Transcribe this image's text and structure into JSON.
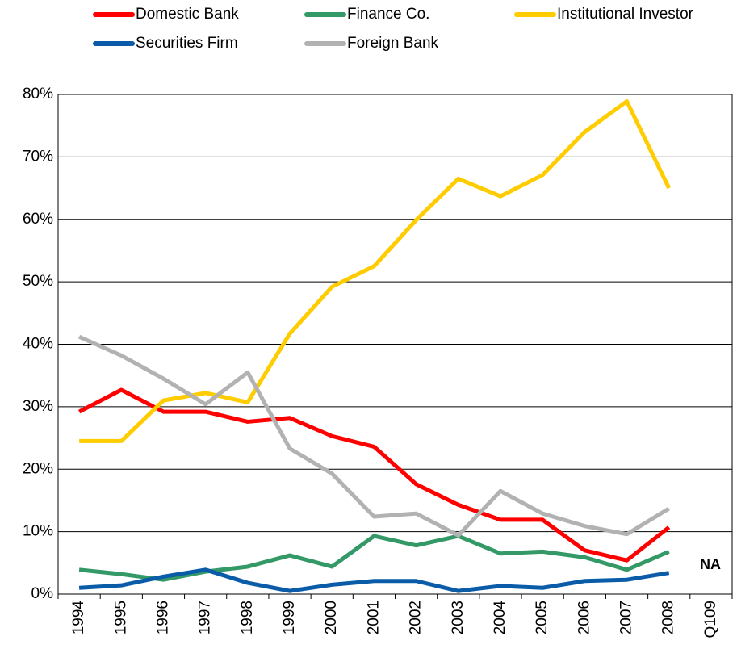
{
  "chart_data": {
    "type": "line",
    "categories": [
      "1994",
      "1995",
      "1996",
      "1997",
      "1998",
      "1999",
      "2000",
      "2001",
      "2002",
      "2003",
      "2004",
      "2005",
      "2006",
      "2007",
      "2008",
      "Q109"
    ],
    "series": [
      {
        "name": "Domestic Bank",
        "color": "#ff0000",
        "values": [
          29.2,
          32.7,
          29.2,
          29.2,
          27.6,
          28.2,
          25.3,
          23.6,
          17.6,
          14.3,
          11.9,
          11.9,
          7,
          5.4,
          10.7,
          null
        ]
      },
      {
        "name": "Finance Co.",
        "color": "#339966",
        "values": [
          3.9,
          3.2,
          2.3,
          3.6,
          4.4,
          6.2,
          4.4,
          9.3,
          7.8,
          9.3,
          6.5,
          6.8,
          5.9,
          3.9,
          6.8,
          null
        ]
      },
      {
        "name": "Institutional Investor",
        "color": "#ffcc00",
        "values": [
          24.5,
          24.5,
          31,
          32.2,
          30.7,
          41.7,
          49.2,
          52.5,
          59.9,
          66.5,
          63.7,
          67.1,
          74,
          78.9,
          65,
          null
        ]
      },
      {
        "name": "Securities Firm",
        "color": "#0a5ca8",
        "values": [
          1,
          1.4,
          2.8,
          3.9,
          1.8,
          0.5,
          1.5,
          2.1,
          2.1,
          0.5,
          1.3,
          1,
          2.1,
          2.3,
          3.4,
          null
        ]
      },
      {
        "name": "Foreign Bank",
        "color": "#b2b2b2",
        "values": [
          41.2,
          38.2,
          34.5,
          30.4,
          35.5,
          23.3,
          19.3,
          12.4,
          12.9,
          9.4,
          16.5,
          12.9,
          10.9,
          9.6,
          13.7,
          null
        ]
      }
    ],
    "ylim": [
      0,
      80
    ],
    "yticks": [
      {
        "value": 0,
        "label": "0%"
      },
      {
        "value": 10,
        "label": "10%"
      },
      {
        "value": 20,
        "label": "20%"
      },
      {
        "value": 30,
        "label": "30%"
      },
      {
        "value": 40,
        "label": "40%"
      },
      {
        "value": 50,
        "label": "50%"
      },
      {
        "value": 60,
        "label": "60%"
      },
      {
        "value": 70,
        "label": "70%"
      },
      {
        "value": 80,
        "label": "80%"
      }
    ],
    "grid": true,
    "legend": "top",
    "annotations": [
      "NA"
    ]
  }
}
